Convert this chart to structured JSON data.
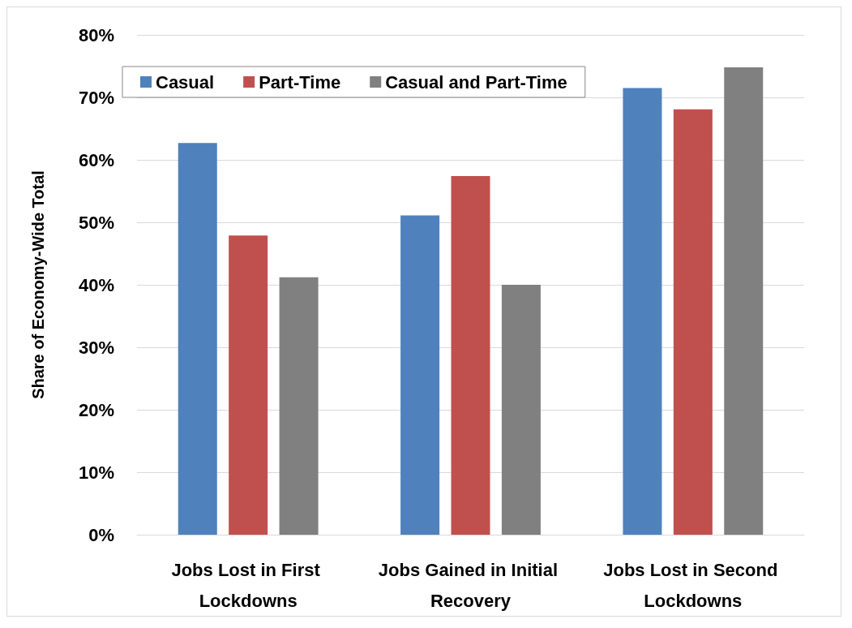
{
  "chart_data": {
    "type": "bar",
    "ylabel": "Share of Economy-Wide Total",
    "categories": [
      "Jobs Lost in First Lockdowns",
      "Jobs Gained in Initial Recovery",
      "Jobs Lost in Second Lockdowns"
    ],
    "series": [
      {
        "name": "Casual",
        "color": "#4f81bd",
        "values": [
          62.7,
          51.1,
          71.5
        ]
      },
      {
        "name": "Part-Time",
        "color": "#c0504d",
        "values": [
          47.9,
          57.4,
          68.1
        ]
      },
      {
        "name": "Casual and Part-Time",
        "color": "#808080",
        "values": [
          41.2,
          40,
          74.8
        ]
      }
    ],
    "ylim": [
      0,
      80
    ],
    "yticks": [
      {
        "value": 0,
        "label": "0%"
      },
      {
        "value": 10,
        "label": "10%"
      },
      {
        "value": 20,
        "label": "20%"
      },
      {
        "value": 30,
        "label": "30%"
      },
      {
        "value": 40,
        "label": "40%"
      },
      {
        "value": 50,
        "label": "50%"
      },
      {
        "value": 60,
        "label": "60%"
      },
      {
        "value": 70,
        "label": "70%"
      },
      {
        "value": 80,
        "label": "80%"
      }
    ],
    "grid": "y",
    "legend": "top"
  }
}
